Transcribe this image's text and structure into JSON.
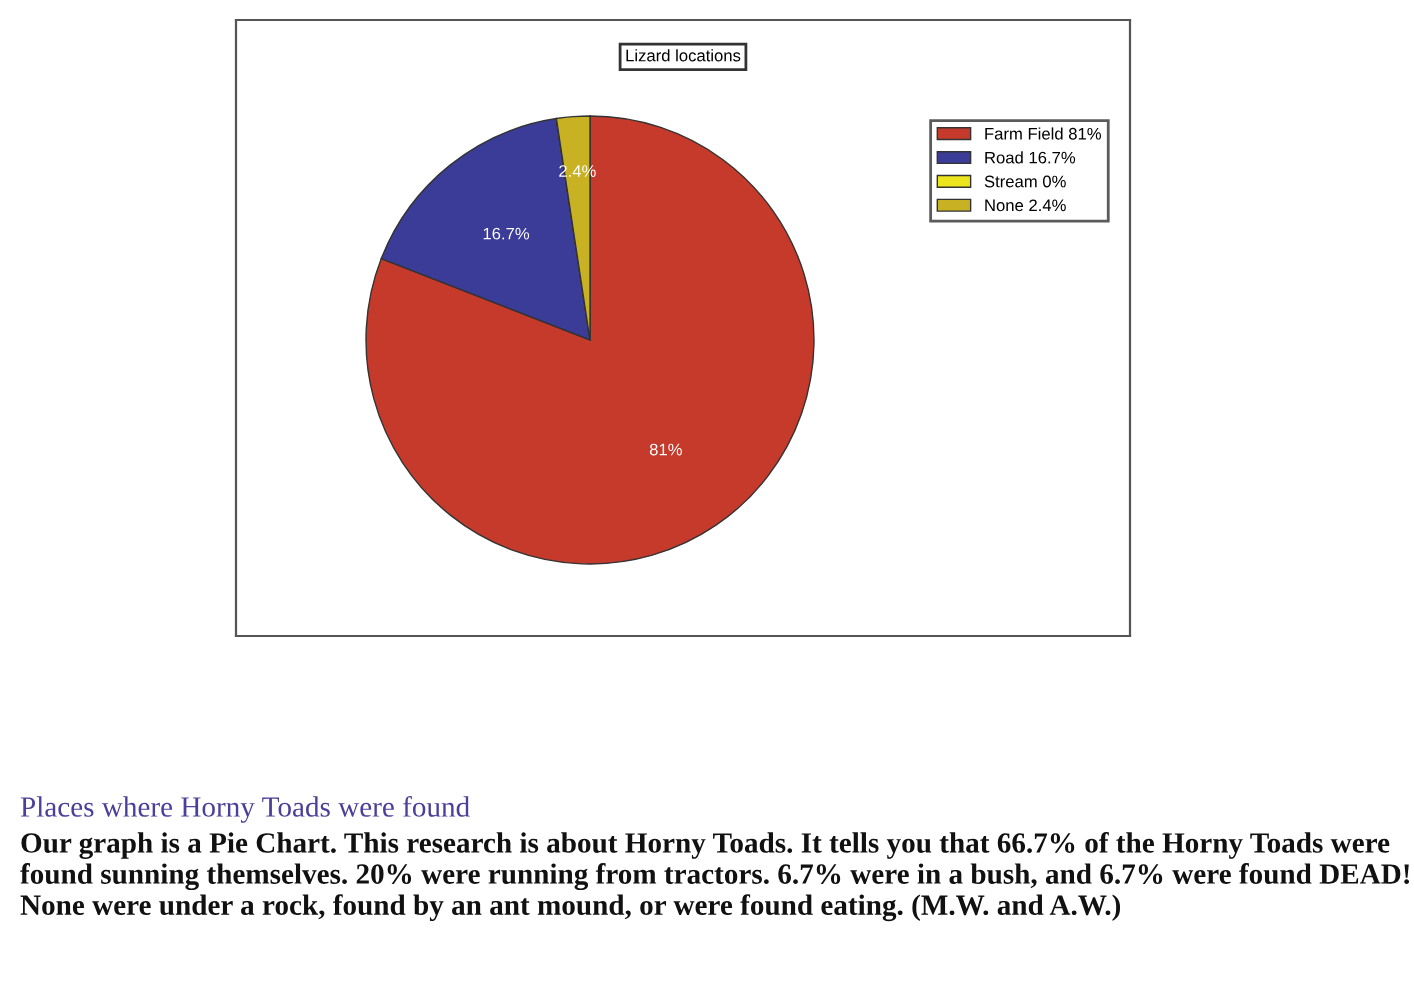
{
  "chart_data": {
    "type": "pie",
    "title": "Lizard locations",
    "categories": [
      "Farm Field 81%",
      "Road 16.7%",
      "Stream 0%",
      "None 2.4%"
    ],
    "values": [
      81,
      16.7,
      0,
      2.4
    ],
    "colors": [
      "#c63a2c",
      "#3b3c98",
      "#ece51e",
      "#c9b124"
    ],
    "value_labels": [
      "81%",
      "16.7%",
      null,
      "2.4%"
    ],
    "legend": "top right",
    "annotations": [
      "Places where Horny Toads were found",
      "Our graph is a Pie Chart. This research is about Horny Toads. It tells you that 66.7% of the Horny Toads were found sunning themselves. 20% were running from tractors. 6.7% were in a bush, and 6.7% were found DEAD! None were under a rock, found by an ant mound, or were found eating. (M.W. and A.W.)"
    ]
  }
}
